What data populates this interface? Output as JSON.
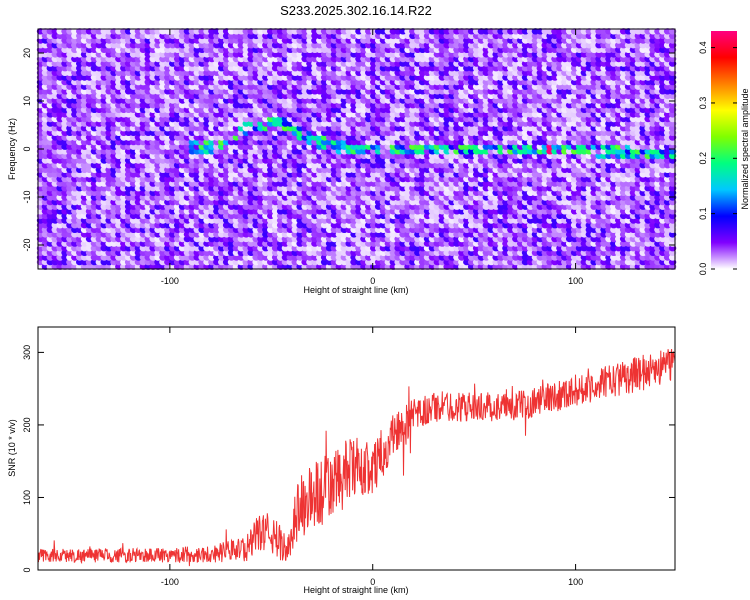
{
  "title": "S233.2025.302.16.14.R22",
  "chart_data": [
    {
      "type": "heatmap",
      "name": "spectrogram",
      "xlabel": "Height of straight line (km)",
      "ylabel": "Frequency (Hz)",
      "xlim": [
        -165,
        149
      ],
      "ylim": [
        -25,
        25
      ],
      "xticks": [
        -100,
        0,
        100
      ],
      "yticks": [
        -20,
        -10,
        0,
        10,
        20
      ],
      "colorbar": {
        "label": "Normalized spectral amplitude",
        "range": [
          0,
          0.43
        ],
        "ticks": [
          0.0,
          0.1,
          0.2,
          0.3,
          0.4
        ],
        "colormap": [
          "#ffffff",
          "#8000ff",
          "#0000ff",
          "#00c8ff",
          "#00ff80",
          "#80ff00",
          "#ffff00",
          "#ff8000",
          "#ff0000",
          "#ff0080"
        ]
      },
      "ridge": {
        "description": "signal band near 0 Hz",
        "points": [
          {
            "x": -80,
            "freq": 0.5
          },
          {
            "x": -58,
            "freq": 5
          },
          {
            "x": -45,
            "freq": 6
          },
          {
            "x": -30,
            "freq": 2
          },
          {
            "x": -10,
            "freq": 0
          },
          {
            "x": 20,
            "freq": 0
          },
          {
            "x": 60,
            "freq": 0
          },
          {
            "x": 100,
            "freq": 0
          },
          {
            "x": 140,
            "freq": -1
          }
        ],
        "peak": {
          "x": 87,
          "freq": 0,
          "amplitude": 0.43
        }
      }
    },
    {
      "type": "line",
      "name": "snr",
      "xlabel": "Height of straight line (km)",
      "ylabel": "SNR (10 * v/v)",
      "xlim": [
        -165,
        149
      ],
      "ylim": [
        0,
        335
      ],
      "xticks": [
        -100,
        0,
        100
      ],
      "yticks": [
        0,
        100,
        200,
        300
      ],
      "color": "#ee3333",
      "envelope": [
        {
          "x": -165,
          "mean": 20,
          "spread": 10
        },
        {
          "x": -120,
          "mean": 20,
          "spread": 10
        },
        {
          "x": -80,
          "mean": 22,
          "spread": 12
        },
        {
          "x": -62,
          "mean": 30,
          "spread": 18
        },
        {
          "x": -55,
          "mean": 55,
          "spread": 28
        },
        {
          "x": -48,
          "mean": 45,
          "spread": 28
        },
        {
          "x": -42,
          "mean": 25,
          "spread": 18
        },
        {
          "x": -38,
          "mean": 80,
          "spread": 45
        },
        {
          "x": -30,
          "mean": 100,
          "spread": 50
        },
        {
          "x": -20,
          "mean": 115,
          "spread": 50
        },
        {
          "x": -10,
          "mean": 140,
          "spread": 45
        },
        {
          "x": 0,
          "mean": 140,
          "spread": 35
        },
        {
          "x": 10,
          "mean": 185,
          "spread": 35
        },
        {
          "x": 20,
          "mean": 210,
          "spread": 25
        },
        {
          "x": 30,
          "mean": 225,
          "spread": 22
        },
        {
          "x": 50,
          "mean": 225,
          "spread": 20
        },
        {
          "x": 70,
          "mean": 225,
          "spread": 20
        },
        {
          "x": 90,
          "mean": 240,
          "spread": 22
        },
        {
          "x": 110,
          "mean": 255,
          "spread": 22
        },
        {
          "x": 130,
          "mean": 270,
          "spread": 25
        },
        {
          "x": 149,
          "mean": 285,
          "spread": 25
        }
      ]
    }
  ]
}
